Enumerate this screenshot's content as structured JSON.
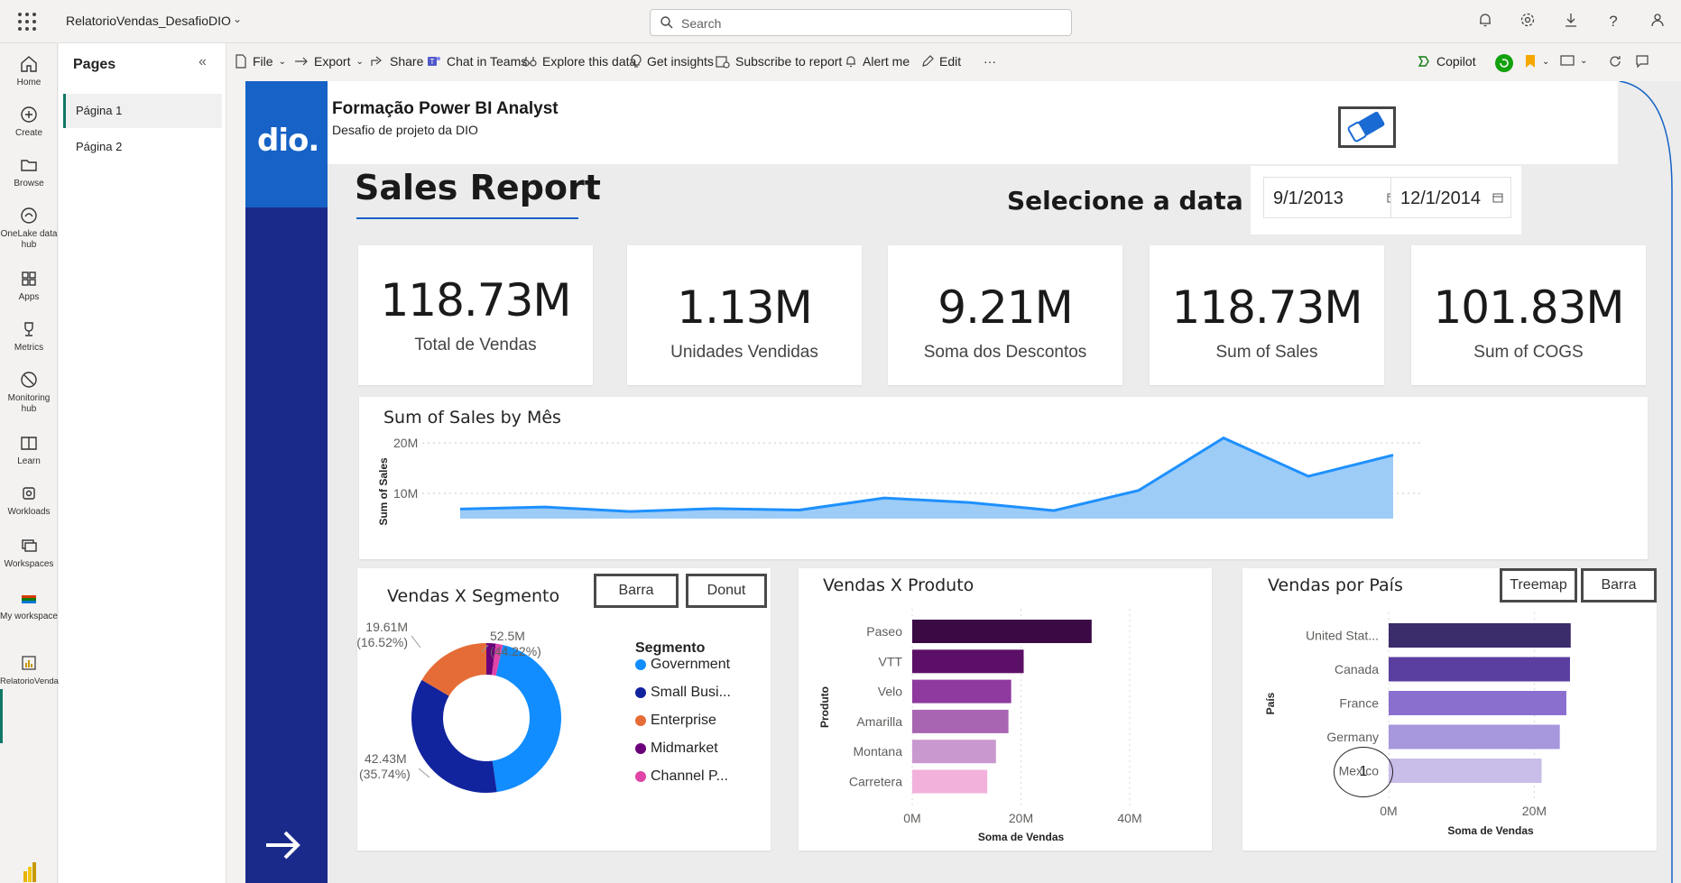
{
  "app": {
    "title": "RelatorioVendas_DesafioDIO"
  },
  "search": {
    "placeholder": "Search"
  },
  "leftnav": [
    {
      "label": "Home",
      "icon": "home-icon"
    },
    {
      "label": "Create",
      "icon": "plus-circle-icon"
    },
    {
      "label": "Browse",
      "icon": "folder-icon"
    },
    {
      "label": "OneLake data hub",
      "icon": "onelake-icon"
    },
    {
      "label": "Apps",
      "icon": "apps-icon"
    },
    {
      "label": "Metrics",
      "icon": "trophy-icon"
    },
    {
      "label": "Monitoring hub",
      "icon": "monitor-icon"
    },
    {
      "label": "Learn",
      "icon": "book-icon"
    },
    {
      "label": "Workloads",
      "icon": "workloads-icon"
    },
    {
      "label": "Workspaces",
      "icon": "workspaces-icon"
    },
    {
      "label": "My workspace",
      "icon": "my-workspace-icon"
    },
    {
      "label": "RelatorioVendas_Desa...",
      "icon": "report-icon"
    }
  ],
  "pages_pane": {
    "title": "Pages",
    "items": [
      "Página 1",
      "Página 2"
    ]
  },
  "toolbar": {
    "file": "File",
    "export": "Export",
    "share": "Share",
    "chat": "Chat in Teams",
    "explore": "Explore this data",
    "insights": "Get insights",
    "subscribe": "Subscribe to report",
    "alert": "Alert me",
    "edit": "Edit",
    "more": "···",
    "copilot": "Copilot"
  },
  "report": {
    "logo": "dio.",
    "title": "Formação Power BI Analyst",
    "subtitle": "Desafio de projeto da DIO",
    "heading": "Sales Report",
    "date_label": "Selecione a data",
    "date_start": "9/1/2013",
    "date_end": "12/1/2014",
    "page_number": "1"
  },
  "kpis": [
    {
      "value": "118.73M",
      "label": "Total de Vendas"
    },
    {
      "value": "1.13M",
      "label": "Unidades Vendidas"
    },
    {
      "value": "9.21M",
      "label": "Soma dos Descontos"
    },
    {
      "value": "118.73M",
      "label": "Sum of  Sales"
    },
    {
      "value": "101.83M",
      "label": "Sum of COGS"
    }
  ],
  "toggles": {
    "segment_bar": "Barra",
    "segment_donut": "Donut",
    "country_treemap": "Treemap",
    "country_bar": "Barra"
  },
  "colors": {
    "area_fill": "#9dccf7",
    "area_line": "#1e90ff",
    "side_band": "#1a2a8a",
    "logo_band": "#1662c6"
  },
  "chart_data": [
    {
      "type": "area",
      "title": "Sum of Sales by Mês",
      "ylabel": "Sum of Sales",
      "xlabel": "",
      "y_ticks": [
        "10M",
        "20M"
      ],
      "ylim": [
        5,
        22
      ],
      "values": [
        6.9,
        7.3,
        6.4,
        7.0,
        6.7,
        9.1,
        8.2,
        6.6,
        10.6,
        21.0,
        13.4,
        17.6
      ],
      "grid": true
    },
    {
      "type": "pie",
      "title": "Vendas X Segmento",
      "legend_title": "Segmento",
      "categories": [
        "Government",
        "Small Busi...",
        "Enterprise",
        "Midmarket",
        "Channel P..."
      ],
      "values": [
        52.5,
        42.43,
        19.61,
        2.4,
        1.8
      ],
      "colors": [
        "#118dff",
        "#12239e",
        "#e66c37",
        "#6b007b",
        "#e044a7"
      ],
      "labels": [
        {
          "value": "52.5M",
          "pct": "(44.22%)"
        },
        {
          "value": "42.43M",
          "pct": "(35.74%)"
        },
        {
          "value": "19.61M",
          "pct": "(16.52%)"
        }
      ]
    },
    {
      "type": "bar",
      "title": "Vendas X Produto",
      "ylabel": "Produto",
      "xlabel": "Soma de Vendas",
      "categories": [
        "Paseo",
        "VTT",
        "Velo",
        "Amarilla",
        "Montana",
        "Carretera"
      ],
      "values": [
        33.0,
        20.5,
        18.2,
        17.7,
        15.4,
        13.8
      ],
      "colors": [
        "#3b0a45",
        "#5c0f66",
        "#8e3a9e",
        "#a866b2",
        "#c998cf",
        "#f2b1db"
      ],
      "x_ticks": [
        "0M",
        "20M",
        "40M"
      ],
      "xlim": [
        0,
        40
      ]
    },
    {
      "type": "bar",
      "title": "Vendas por País",
      "ylabel": "País",
      "xlabel": "Soma de Vendas",
      "categories": [
        "United Stat...",
        "Canada",
        "France",
        "Germany",
        "Mexico"
      ],
      "values": [
        25.0,
        24.9,
        24.4,
        23.5,
        21.0
      ],
      "colors": [
        "#3b2c6b",
        "#5b3fa0",
        "#8a6fcf",
        "#a797dd",
        "#c9bde9"
      ],
      "x_ticks": [
        "0M",
        "20M"
      ],
      "xlim": [
        0,
        28
      ]
    }
  ]
}
